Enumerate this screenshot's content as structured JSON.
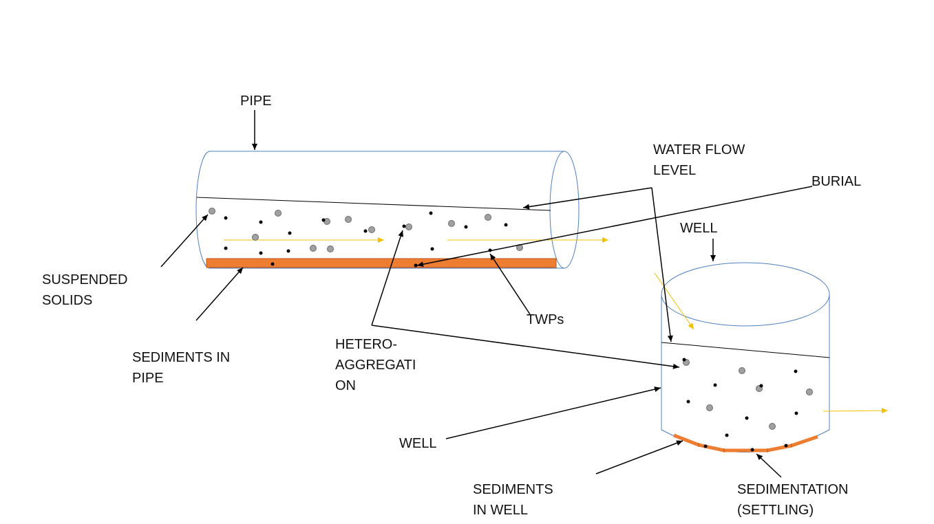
{
  "labels": {
    "pipe": "PIPE",
    "water_flow_level_1": "WATER FLOW",
    "water_flow_level_2": "LEVEL",
    "burial": "BURIAL",
    "well_top": "WELL",
    "suspended_solids_1": "SUSPENDED",
    "suspended_solids_2": "SOLIDS",
    "sediments_in_pipe_1": "SEDIMENTS IN",
    "sediments_in_pipe_2": "PIPE",
    "twps": "TWPs",
    "hetero_1": "HETERO-",
    "hetero_2": "AGGREGATI",
    "hetero_3": "ON",
    "well_side": "WELL",
    "sediments_in_well_1": "SEDIMENTS",
    "sediments_in_well_2": "IN WELL",
    "sedimentation_1": "SEDIMENTATION",
    "sedimentation_2": "(SETTLING)"
  },
  "colors": {
    "vessel_outline": "#4f7fbf",
    "sediment": "#ed7d31",
    "sediment_edge": "#c0561a",
    "flow_arrow": "#f2c000",
    "suspended_solid": "#a0a0a0",
    "twp_particle": "#000000",
    "pointer": "#000000"
  },
  "icons": {
    "suspended_solid": "grey-circle",
    "twp": "black-dot",
    "flow": "yellow-arrow"
  }
}
